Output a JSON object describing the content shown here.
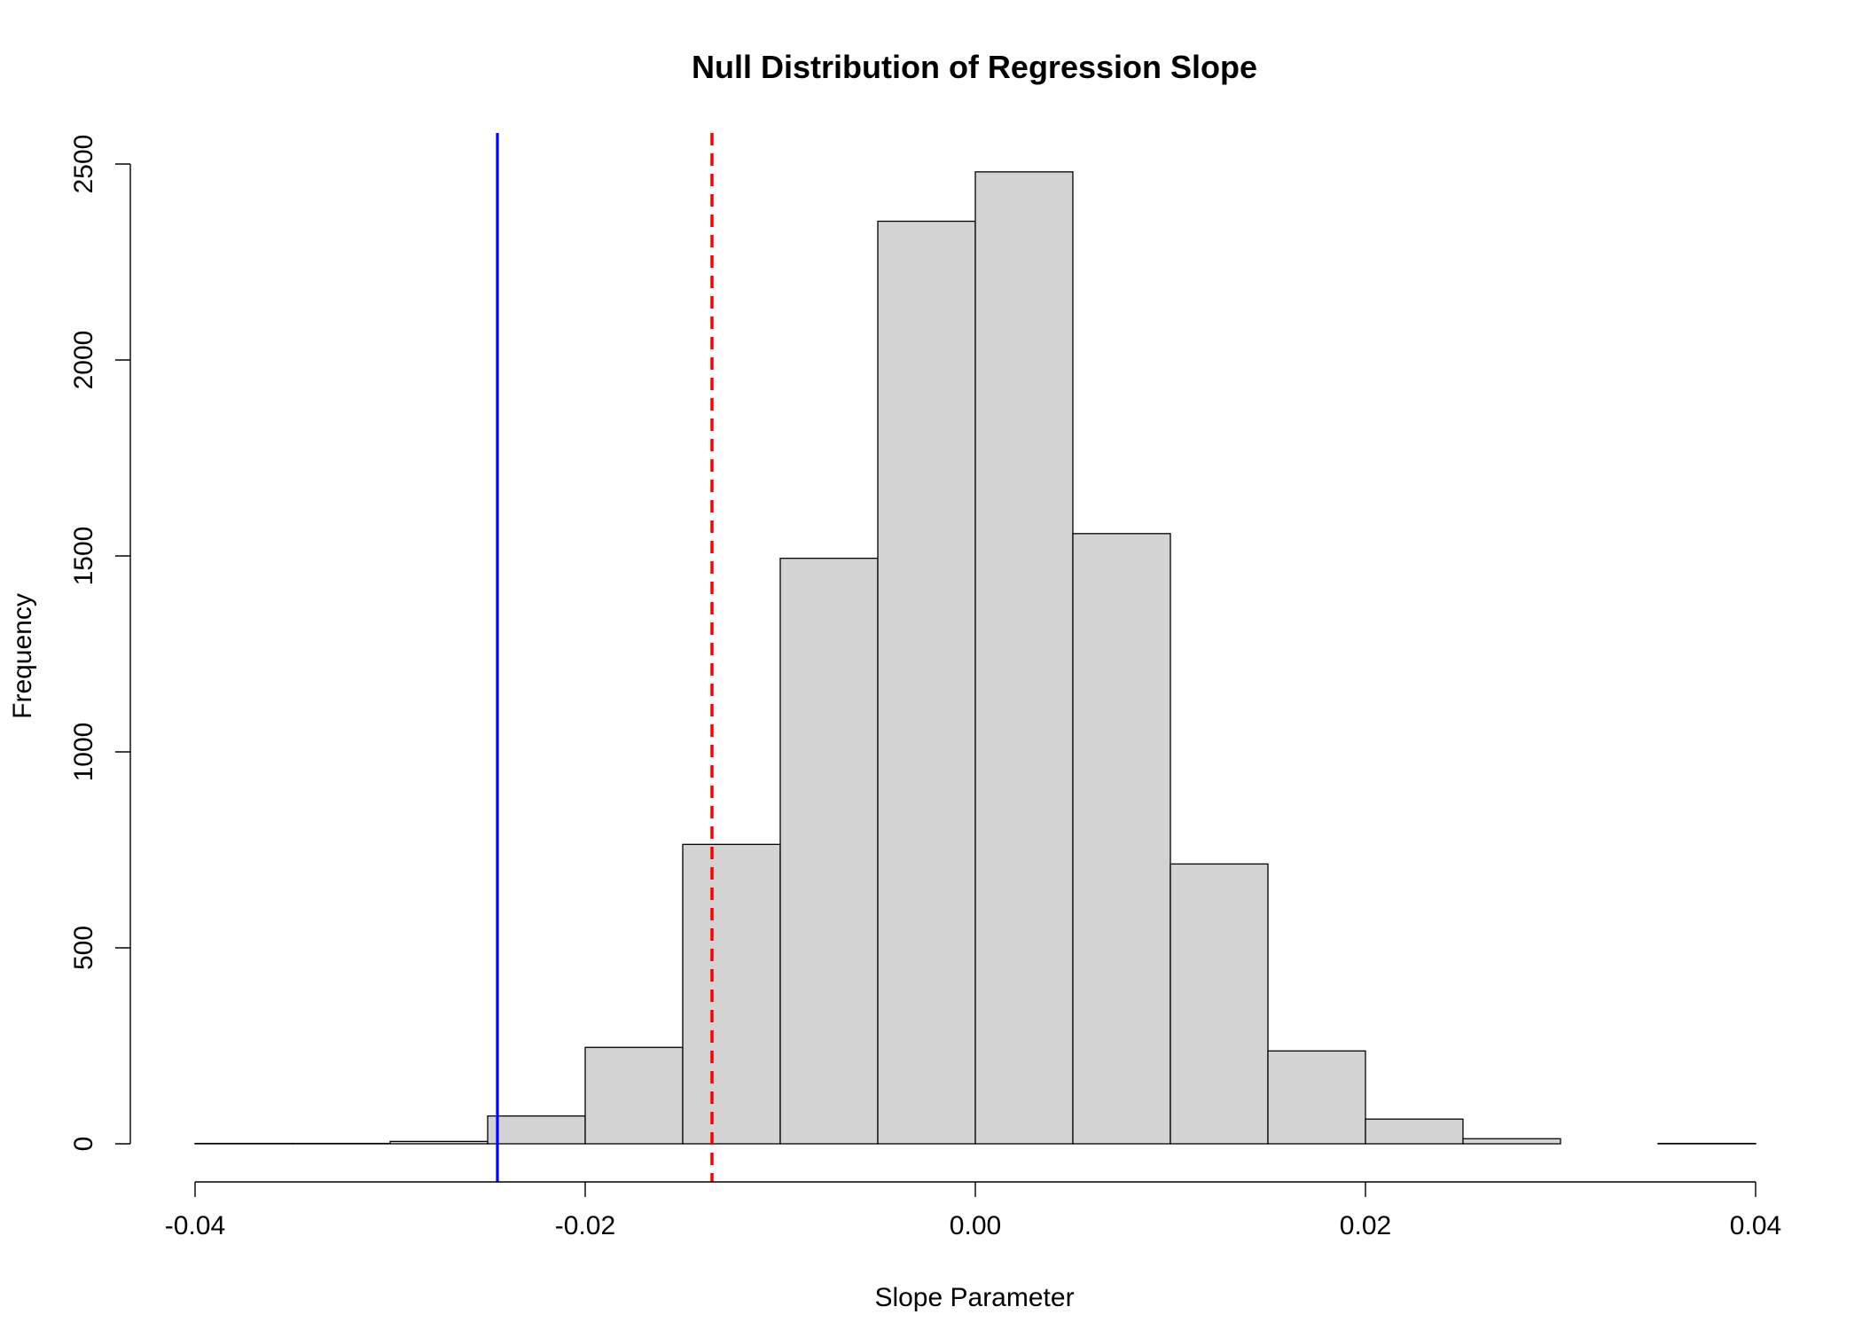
{
  "chart_data": {
    "type": "bar",
    "title": "Null Distribution of Regression Slope",
    "xlabel": "Slope Parameter",
    "ylabel": "Frequency",
    "xlim": [
      -0.04,
      0.04
    ],
    "ylim": [
      0,
      2500
    ],
    "x_ticks": [
      -0.04,
      -0.02,
      0.0,
      0.02,
      0.04
    ],
    "x_tick_labels": [
      "-0.04",
      "-0.02",
      "0.00",
      "0.02",
      "0.04"
    ],
    "y_ticks": [
      0,
      500,
      1000,
      1500,
      2000,
      2500
    ],
    "y_tick_labels": [
      "0",
      "500",
      "1000",
      "1500",
      "2000",
      "2500"
    ],
    "bin_width": 0.005,
    "bins": [
      {
        "start": -0.04,
        "end": -0.035,
        "count": 1
      },
      {
        "start": -0.035,
        "end": -0.03,
        "count": 1
      },
      {
        "start": -0.03,
        "end": -0.025,
        "count": 6
      },
      {
        "start": -0.025,
        "end": -0.02,
        "count": 71
      },
      {
        "start": -0.02,
        "end": -0.015,
        "count": 246
      },
      {
        "start": -0.015,
        "end": -0.01,
        "count": 764
      },
      {
        "start": -0.01,
        "end": -0.005,
        "count": 1494
      },
      {
        "start": -0.005,
        "end": 0.0,
        "count": 2354
      },
      {
        "start": 0.0,
        "end": 0.005,
        "count": 2480
      },
      {
        "start": 0.005,
        "end": 0.01,
        "count": 1557
      },
      {
        "start": 0.01,
        "end": 0.015,
        "count": 714
      },
      {
        "start": 0.015,
        "end": 0.02,
        "count": 237
      },
      {
        "start": 0.02,
        "end": 0.025,
        "count": 63
      },
      {
        "start": 0.025,
        "end": 0.03,
        "count": 13
      },
      {
        "start": 0.03,
        "end": 0.035,
        "count": 0
      },
      {
        "start": 0.035,
        "end": 0.04,
        "count": 1
      }
    ],
    "reference_lines": [
      {
        "x": -0.0245,
        "color": "#0000ff",
        "style": "solid"
      },
      {
        "x": -0.0135,
        "color": "#ff0000",
        "style": "dashed"
      }
    ],
    "bar_fill": "#d3d3d3",
    "bar_stroke": "#000000",
    "grid": false,
    "legend": "none"
  }
}
